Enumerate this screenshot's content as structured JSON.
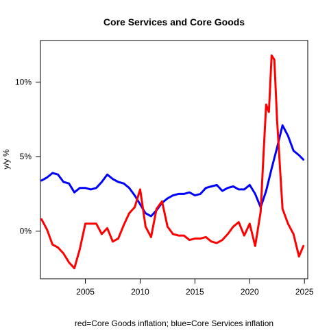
{
  "chart_data": {
    "type": "line",
    "title": "Core Services and Core Goods",
    "xlabel": "red=Core Goods inflation; blue=Core Services inflation",
    "ylabel": "y/y %",
    "xlim": [
      2000.9,
      2025.3
    ],
    "ylim": [
      -3.2,
      12.8
    ],
    "x_ticks": [
      2005,
      2010,
      2015,
      2020,
      2025
    ],
    "x_tick_labels": [
      "2005",
      "2010",
      "2015",
      "2020",
      "2025"
    ],
    "y_ticks": [
      0,
      5,
      10
    ],
    "y_tick_labels": [
      "0%",
      "5%",
      "10%"
    ],
    "grid": false,
    "legend": "none",
    "series": [
      {
        "color": "#0000ff",
        "x": [
          2001.0,
          2001.5,
          2002.0,
          2002.5,
          2003.0,
          2003.5,
          2004.0,
          2004.5,
          2005.0,
          2005.5,
          2006.0,
          2006.5,
          2007.0,
          2007.5,
          2008.0,
          2008.5,
          2009.0,
          2009.5,
          2010.0,
          2010.5,
          2011.0,
          2011.5,
          2012.0,
          2012.5,
          2013.0,
          2013.5,
          2014.0,
          2014.5,
          2015.0,
          2015.5,
          2016.0,
          2016.5,
          2017.0,
          2017.5,
          2018.0,
          2018.5,
          2019.0,
          2019.5,
          2020.0,
          2020.5,
          2021.0,
          2021.5,
          2022.0,
          2022.5,
          2023.0,
          2023.5,
          2024.0,
          2024.5,
          2024.9
        ],
        "y": [
          3.4,
          3.6,
          3.9,
          3.8,
          3.3,
          3.2,
          2.6,
          2.9,
          2.9,
          2.8,
          2.9,
          3.3,
          3.8,
          3.5,
          3.3,
          3.2,
          2.9,
          2.4,
          1.8,
          1.2,
          1.0,
          1.4,
          1.9,
          2.2,
          2.4,
          2.5,
          2.5,
          2.6,
          2.4,
          2.5,
          2.9,
          3.0,
          3.1,
          2.7,
          2.9,
          3.0,
          2.8,
          2.8,
          3.1,
          2.5,
          1.6,
          2.7,
          4.2,
          5.6,
          7.1,
          6.4,
          5.4,
          5.1,
          4.8
        ]
      },
      {
        "color": "#ff0000",
        "x": [
          2001.0,
          2001.5,
          2002.0,
          2002.5,
          2003.0,
          2003.5,
          2004.0,
          2004.5,
          2005.0,
          2005.5,
          2006.0,
          2006.5,
          2007.0,
          2007.5,
          2008.0,
          2008.5,
          2009.0,
          2009.5,
          2010.0,
          2010.5,
          2011.0,
          2011.5,
          2012.0,
          2012.5,
          2013.0,
          2013.5,
          2014.0,
          2014.5,
          2015.0,
          2015.5,
          2016.0,
          2016.5,
          2017.0,
          2017.5,
          2018.0,
          2018.5,
          2019.0,
          2019.5,
          2020.0,
          2020.5,
          2021.0,
          2021.25,
          2021.5,
          2021.75,
          2022.0,
          2022.25,
          2022.5,
          2022.75,
          2023.0,
          2023.5,
          2024.0,
          2024.5,
          2024.9
        ],
        "y": [
          0.8,
          0.1,
          -0.9,
          -1.1,
          -1.5,
          -2.1,
          -2.5,
          -1.2,
          0.5,
          0.5,
          0.5,
          -0.2,
          0.2,
          -0.7,
          -0.5,
          0.4,
          1.2,
          1.6,
          2.8,
          0.3,
          -0.4,
          1.5,
          2.0,
          0.3,
          -0.2,
          -0.3,
          -0.3,
          -0.6,
          -0.5,
          -0.5,
          -0.4,
          -0.7,
          -0.8,
          -0.6,
          -0.2,
          0.3,
          0.6,
          -0.3,
          0.5,
          -1.0,
          1.3,
          5.0,
          8.5,
          8.0,
          11.8,
          11.5,
          7.5,
          4.5,
          1.5,
          0.5,
          -0.2,
          -1.7,
          -1.0
        ]
      }
    ]
  }
}
